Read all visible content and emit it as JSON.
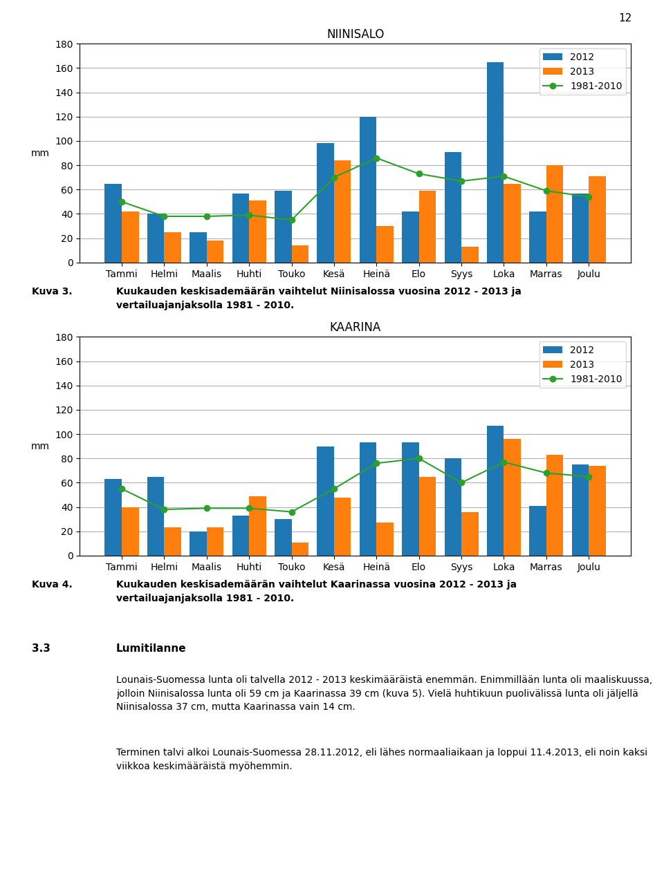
{
  "chart_data": [
    {
      "type": "bar",
      "title": "NIINISALO",
      "categories": [
        "Tammi",
        "Helmi",
        "Maalis",
        "Huhti",
        "Touko",
        "Kesä",
        "Heinä",
        "Elo",
        "Syys",
        "Loka",
        "Marras",
        "Joulu"
      ],
      "series": [
        {
          "name": "2012",
          "values": [
            65,
            40,
            25,
            57,
            59,
            98,
            120,
            42,
            91,
            165,
            42,
            57
          ]
        },
        {
          "name": "2013",
          "values": [
            42,
            25,
            18,
            51,
            14,
            84,
            30,
            59,
            13,
            65,
            80,
            71
          ]
        },
        {
          "name": "1981-2010",
          "type": "line",
          "marker": "o",
          "values": [
            50,
            38,
            38,
            39,
            35,
            70,
            86,
            73,
            67,
            71,
            59,
            54
          ]
        }
      ],
      "ylabel": "mm",
      "ylim": [
        0,
        180
      ],
      "yticks": [
        0,
        20,
        40,
        60,
        80,
        100,
        120,
        140,
        160,
        180
      ],
      "grid": true,
      "legend": "upper right",
      "annotations": [
        "Kuva 3.",
        "Kuukauden keskisademäärän vaihtelut Niinisalossa vuosina 2012 - 2013 ja\nvertailuajanjaksolla 1981 - 2010."
      ]
    },
    {
      "type": "bar",
      "title": "KAARINA",
      "categories": [
        "Tammi",
        "Helmi",
        "Maalis",
        "Huhti",
        "Touko",
        "Kesä",
        "Heinä",
        "Elo",
        "Syys",
        "Loka",
        "Marras",
        "Joulu"
      ],
      "series": [
        {
          "name": "2012",
          "values": [
            63,
            65,
            20,
            33,
            30,
            90,
            93,
            93,
            80,
            107,
            41,
            75
          ]
        },
        {
          "name": "2013",
          "values": [
            40,
            23,
            23,
            49,
            11,
            48,
            27,
            65,
            36,
            96,
            83,
            74
          ]
        },
        {
          "name": "1981-2010",
          "type": "line",
          "marker": "o",
          "values": [
            55,
            38,
            39,
            39,
            36,
            55,
            76,
            80,
            60,
            77,
            68,
            65
          ]
        }
      ],
      "ylabel": "mm",
      "ylim": [
        0,
        180
      ],
      "yticks": [
        0,
        20,
        40,
        60,
        80,
        100,
        120,
        140,
        160,
        180
      ],
      "grid": true,
      "legend": "upper right",
      "annotations": [
        "Kuva 4.",
        "Kuukauden keskisademäärän vaihtelut Kaarinassa vuosina 2012 - 2013 ja\nvertailuajanjaksolla 1981 - 2010."
      ]
    }
  ],
  "annotations": [
    "12",
    "3.3",
    "Lumitilanne",
    "Lounais-Suomessa lunta oli talvella 2012 - 2013 keskimääräistä enemmän. Enimmillään lunta oli maaliskuussa, jolloin Niinisalossa lunta oli 59 cm ja Kaarinassa 39 cm (kuva 5). Vielä huhtikuun puolivälissä lunta oli jäljellä Niinisalossa 37 cm, mutta Kaarinassa vain 14 cm.",
    "Terminen talvi alkoi Lounais-Suomessa 28.11.2012, eli lähes normaaliaikaan ja loppui 11.4.2013, eli noin kaksi viikkoa keskimääräistä myöhemmin."
  ]
}
